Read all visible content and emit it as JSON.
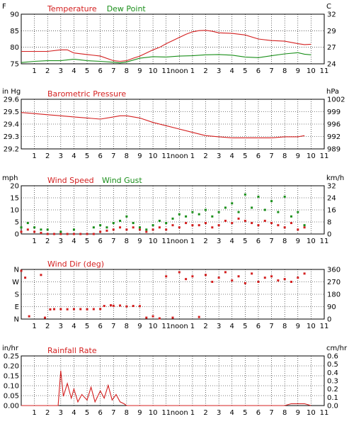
{
  "colors": {
    "red": "#d42020",
    "green": "#1a8f1a",
    "text": "#000000"
  },
  "time_axis": {
    "labels": [
      "1",
      "2",
      "3",
      "4",
      "5",
      "6",
      "7",
      "8",
      "9",
      "10",
      "11",
      "noon",
      "1",
      "2",
      "3",
      "4",
      "5",
      "6",
      "7",
      "8",
      "9",
      "10",
      "11"
    ]
  },
  "chart_data": [
    {
      "type": "line",
      "title_parts": [
        "Temperature",
        "Dew Point"
      ],
      "unit_left": "F",
      "unit_right": "C",
      "y_ticks_left": [
        "90",
        "85",
        "80",
        "75"
      ],
      "y_ticks_right": [
        "32",
        "29",
        "27",
        "24"
      ],
      "ylim": [
        75,
        91
      ],
      "series": [
        {
          "name": "Temperature",
          "color": "red",
          "x": [
            0,
            1,
            2,
            3,
            3.5,
            4,
            5,
            6,
            7,
            7.5,
            8,
            8.5,
            9,
            9.5,
            10,
            10.5,
            11,
            11.5,
            12,
            12.5,
            13,
            13.5,
            14,
            14.5,
            15,
            16,
            17,
            18,
            19,
            20,
            21,
            21.5,
            22
          ],
          "y": [
            79,
            79,
            79,
            79.5,
            79.5,
            78.5,
            78,
            77.5,
            76,
            75.8,
            76,
            76.8,
            77.5,
            78.5,
            79.5,
            80.3,
            81.5,
            82.5,
            83.5,
            84.5,
            85.3,
            85.7,
            85.8,
            85.5,
            85,
            84.8,
            84.3,
            83,
            82.5,
            82.3,
            81.5,
            81.2,
            81.3
          ]
        },
        {
          "name": "Dew Point",
          "color": "green",
          "x": [
            0,
            1,
            2,
            3,
            4,
            5,
            6,
            7,
            7.5,
            8,
            9,
            10,
            11,
            12,
            13,
            14,
            15,
            16,
            17,
            18,
            19,
            20,
            21,
            21.5,
            22
          ],
          "y": [
            75.4,
            75.8,
            76,
            76,
            76.5,
            76,
            75.8,
            75.5,
            75.3,
            75.6,
            76.8,
            77.3,
            77.2,
            77.5,
            77.6,
            77.9,
            78,
            77.8,
            77.2,
            77,
            77.6,
            78.2,
            78.6,
            78.1,
            77.9
          ]
        }
      ]
    },
    {
      "type": "line",
      "title_parts": [
        "Barometric Pressure"
      ],
      "unit_left": "in Hg",
      "unit_right": "hPa",
      "y_ticks_left": [
        "29.6",
        "29.5",
        "29.4",
        "29.3",
        "29.2"
      ],
      "y_ticks_right": [
        "1002",
        "999",
        "996",
        "992",
        "989"
      ],
      "ylim": [
        29.2,
        29.65
      ],
      "series": [
        {
          "name": "Barometric Pressure",
          "color": "red",
          "x": [
            0,
            1,
            2,
            3,
            4,
            5,
            6,
            7,
            7.5,
            8,
            9,
            10,
            11,
            12,
            13,
            14,
            15,
            16,
            17,
            18,
            19,
            20,
            21,
            21.5
          ],
          "y": [
            29.53,
            29.52,
            29.51,
            29.5,
            29.49,
            29.48,
            29.47,
            29.49,
            29.5,
            29.5,
            29.48,
            29.44,
            29.41,
            29.38,
            29.35,
            29.32,
            29.31,
            29.3,
            29.3,
            29.3,
            29.3,
            29.31,
            29.31,
            29.32
          ]
        }
      ]
    },
    {
      "type": "scatter",
      "title_parts": [
        "Wind Speed",
        "Wind Gust"
      ],
      "unit_left": "mph",
      "unit_right": "km/h",
      "y_ticks_left": [
        "20",
        "15",
        "10",
        "5",
        "0"
      ],
      "y_ticks_right": [
        "32",
        "24",
        "16",
        "8",
        "0"
      ],
      "ylim": [
        0,
        22
      ],
      "series": [
        {
          "name": "Wind Speed",
          "color": "red",
          "x": [
            0,
            0.5,
            1,
            1.5,
            2,
            2.5,
            3,
            3.5,
            4,
            4.5,
            5,
            5.5,
            6,
            6.5,
            7,
            7.5,
            8,
            8.5,
            9,
            9.5,
            10,
            10.5,
            11,
            11.5,
            12,
            12.5,
            13,
            13.5,
            14,
            14.5,
            15,
            15.5,
            16,
            16.5,
            17,
            17.5,
            18,
            18.5,
            19,
            19.5,
            20,
            20.5,
            21,
            21.5
          ],
          "y": [
            1,
            2,
            1,
            0.5,
            0,
            0,
            0,
            0,
            0,
            0,
            0,
            0,
            1,
            1.5,
            2,
            3,
            2,
            3,
            2,
            1,
            2,
            3,
            2,
            4,
            3,
            5,
            4,
            4,
            5,
            3,
            4,
            6,
            5,
            7,
            6,
            5,
            4,
            6,
            5,
            4,
            3,
            5,
            2,
            3
          ]
        },
        {
          "name": "Wind Gust",
          "color": "green",
          "x": [
            0,
            0.5,
            1,
            1.5,
            2,
            3,
            4,
            5.5,
            6,
            6.5,
            7,
            7.5,
            8,
            8.5,
            9,
            9.5,
            10,
            10.5,
            11,
            11.5,
            12,
            12.5,
            13,
            13.5,
            14,
            14.5,
            15,
            15.5,
            16,
            16.5,
            17,
            17.5,
            18,
            18.5,
            19,
            19.5,
            20,
            20.5,
            21,
            21.5
          ],
          "y": [
            3,
            5,
            3,
            2,
            2,
            1,
            2,
            3,
            4,
            3,
            5,
            6,
            8,
            5,
            3,
            2,
            4,
            6,
            5,
            7,
            9,
            8,
            10,
            9,
            11,
            8,
            10,
            12,
            14,
            10,
            18,
            12,
            17,
            11,
            15,
            10,
            17,
            8,
            10,
            4
          ]
        }
      ]
    },
    {
      "type": "scatter",
      "title_parts": [
        "Wind Dir (deg)"
      ],
      "unit_left": "",
      "unit_right": "",
      "y_ticks_left": [
        "N",
        "W",
        "S",
        "E",
        "N"
      ],
      "y_ticks_right": [
        "360",
        "270",
        "180",
        "90",
        "0"
      ],
      "ylim": [
        0,
        360
      ],
      "series": [
        {
          "name": "Wind Dir",
          "color": "red",
          "x": [
            0,
            0.3,
            0.6,
            1.5,
            1.8,
            2.2,
            2.5,
            3,
            3.5,
            4,
            4.5,
            5,
            5.5,
            6,
            6.3,
            6.8,
            7,
            7.5,
            8,
            8.5,
            9,
            9.5,
            10,
            10.5,
            11,
            11.5,
            12,
            12.5,
            13,
            13.5,
            14,
            14.5,
            15,
            15.5,
            16,
            16.5,
            17,
            17.5,
            18,
            18.5,
            19,
            19.5,
            20,
            20.5,
            21,
            21.5
          ],
          "y": [
            350,
            300,
            20,
            320,
            10,
            70,
            72,
            72,
            71,
            72,
            72,
            71,
            72,
            73,
            95,
            100,
            96,
            98,
            92,
            95,
            94,
            10,
            20,
            5,
            310,
            10,
            340,
            290,
            310,
            15,
            320,
            270,
            300,
            340,
            280,
            310,
            260,
            330,
            270,
            300,
            310,
            280,
            290,
            270,
            300,
            330
          ]
        }
      ]
    },
    {
      "type": "line",
      "title_parts": [
        "Rainfall Rate"
      ],
      "unit_left": "in/hr",
      "unit_right": "cm/hr",
      "y_ticks_left": [
        "0.25",
        "0.20",
        "0.15",
        "0.10",
        "0.05",
        "0.00"
      ],
      "y_ticks_right": [
        "0.6",
        "0.5",
        "0.4",
        "0.3",
        "0.2",
        "0.1",
        "0.0"
      ],
      "ylim": [
        0,
        0.27
      ],
      "series": [
        {
          "name": "Rainfall Rate",
          "color": "red",
          "x": [
            0,
            1,
            2,
            2.8,
            3,
            3.2,
            3.5,
            3.8,
            4,
            4.3,
            4.6,
            5,
            5.3,
            5.6,
            6,
            6.3,
            6.6,
            6.9,
            7.2,
            7.5,
            7.8,
            8,
            9,
            10,
            15,
            20,
            20.5,
            21,
            21.5,
            22
          ],
          "y": [
            0,
            0,
            0,
            0,
            0.19,
            0.05,
            0.12,
            0.04,
            0.09,
            0.02,
            0.06,
            0.03,
            0.1,
            0.02,
            0.08,
            0.04,
            0.11,
            0.03,
            0.06,
            0.02,
            0.01,
            0,
            0,
            0,
            0,
            0,
            0.01,
            0.01,
            0.01,
            0
          ]
        }
      ]
    }
  ]
}
